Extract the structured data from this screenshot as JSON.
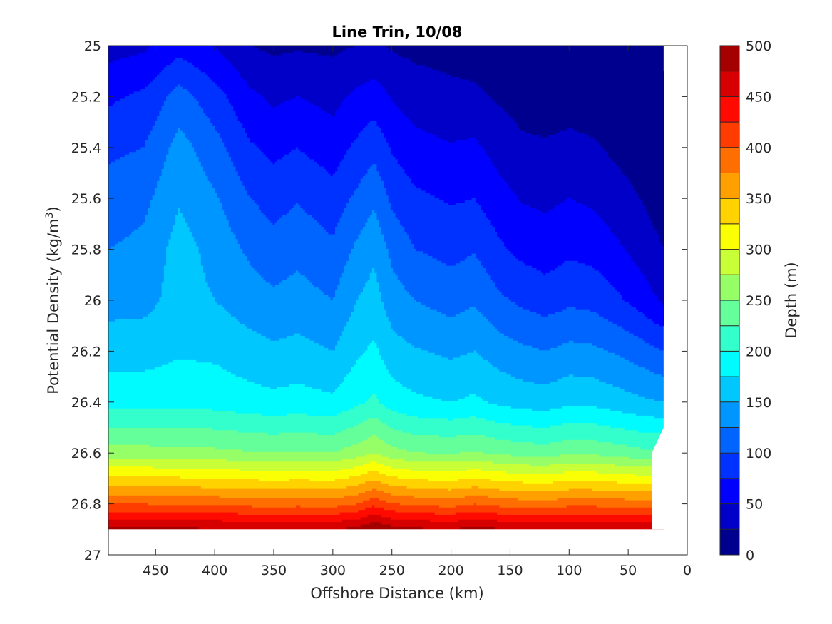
{
  "chart_data": {
    "type": "contour",
    "title": "Line Trin, 10/08",
    "xlabel": "Offshore Distance (km)",
    "ylabel_main": "Potential Density (kg/m",
    "ylabel_sup": "3",
    "ylabel_close": ")",
    "colorbar_label": "Depth (m)",
    "xlim": [
      490,
      0
    ],
    "x_reversed": true,
    "ylim": [
      25,
      27
    ],
    "y_reversed": true,
    "x_ticks": [
      450,
      400,
      350,
      300,
      250,
      200,
      150,
      100,
      50,
      0
    ],
    "y_ticks": [
      25,
      25.2,
      25.4,
      25.6,
      25.8,
      26,
      26.2,
      26.4,
      26.6,
      26.8,
      27
    ],
    "y_tick_labels": [
      "25",
      "25.2",
      "25.4",
      "25.6",
      "25.8",
      "26",
      "26.2",
      "26.4",
      "26.6",
      "26.8",
      "27"
    ],
    "colorbar_ticks": [
      0,
      50,
      100,
      150,
      200,
      250,
      300,
      350,
      400,
      450,
      500
    ],
    "contour_levels": [
      0,
      25,
      50,
      75,
      100,
      125,
      150,
      175,
      200,
      225,
      250,
      275,
      300,
      325,
      350,
      375,
      400,
      425,
      450,
      475,
      500
    ],
    "colormap": [
      "#00008f",
      "#0000c8",
      "#0000ff",
      "#0032ff",
      "#0064ff",
      "#0096ff",
      "#00c8ff",
      "#00fbff",
      "#32ffcc",
      "#64ff9a",
      "#96ff68",
      "#c8ff36",
      "#fbff04",
      "#ffd200",
      "#ffa000",
      "#ff6e00",
      "#ff3c00",
      "#ff0a00",
      "#d70000",
      "#a50000"
    ],
    "data_extent": {
      "x_min": 20,
      "x_max": 490,
      "sigma_max": 26.9
    },
    "isopycnal_depths": {
      "x": [
        490,
        460,
        430,
        400,
        370,
        350,
        330,
        300,
        280,
        265,
        250,
        230,
        200,
        180,
        160,
        140,
        120,
        100,
        80,
        60,
        40,
        20
      ],
      "sigma": [
        25.0,
        25.2,
        25.4,
        25.6,
        25.8,
        26.0,
        26.2,
        26.4,
        26.6,
        26.8,
        26.9
      ],
      "depth": [
        [
          40,
          45,
          65,
          50,
          25,
          20,
          22,
          20,
          25,
          28,
          22,
          18,
          15,
          12,
          8,
          5,
          5,
          5,
          5,
          5,
          5,
          0
        ],
        [
          70,
          80,
          110,
          85,
          55,
          45,
          50,
          42,
          55,
          62,
          48,
          38,
          32,
          30,
          22,
          15,
          12,
          14,
          12,
          8,
          5,
          2
        ],
        [
          95,
          100,
          135,
          110,
          78,
          68,
          75,
          62,
          80,
          92,
          72,
          58,
          52,
          55,
          40,
          30,
          28,
          32,
          28,
          20,
          12,
          5
        ],
        [
          110,
          118,
          148,
          128,
          100,
          90,
          98,
          85,
          105,
          120,
          95,
          80,
          72,
          75,
          60,
          48,
          45,
          50,
          46,
          35,
          25,
          12
        ],
        [
          125,
          132,
          160,
          142,
          120,
          110,
          118,
          105,
          130,
          145,
          118,
          100,
          92,
          98,
          80,
          68,
          62,
          70,
          66,
          55,
          40,
          25
        ],
        [
          140,
          142,
          160,
          150,
          137,
          130,
          135,
          125,
          150,
          160,
          137,
          125,
          115,
          122,
          105,
          95,
          88,
          95,
          92,
          80,
          65,
          45
        ],
        [
          165,
          165,
          172,
          170,
          160,
          155,
          158,
          150,
          170,
          180,
          160,
          152,
          145,
          150,
          138,
          130,
          125,
          132,
          130,
          122,
          112,
          100
        ],
        [
          190,
          190,
          192,
          190,
          185,
          182,
          185,
          180,
          195,
          205,
          188,
          180,
          175,
          180,
          170,
          165,
          162,
          170,
          168,
          162,
          155,
          150
        ],
        [
          260,
          260,
          258,
          256,
          252,
          250,
          252,
          250,
          262,
          275,
          258,
          250,
          248,
          252,
          245,
          240,
          238,
          245,
          244,
          238,
          232,
          230
        ],
        [
          400,
          400,
          398,
          395,
          392,
          390,
          392,
          390,
          400,
          418,
          402,
          395,
          390,
          400,
          392,
          388,
          386,
          392,
          392,
          390,
          388,
          386
        ],
        [
          480,
          480,
          480,
          478,
          476,
          475,
          476,
          475,
          482,
          500,
          485,
          480,
          476,
          484,
          478,
          474,
          472,
          478,
          478,
          476,
          474,
          472
        ]
      ]
    }
  }
}
